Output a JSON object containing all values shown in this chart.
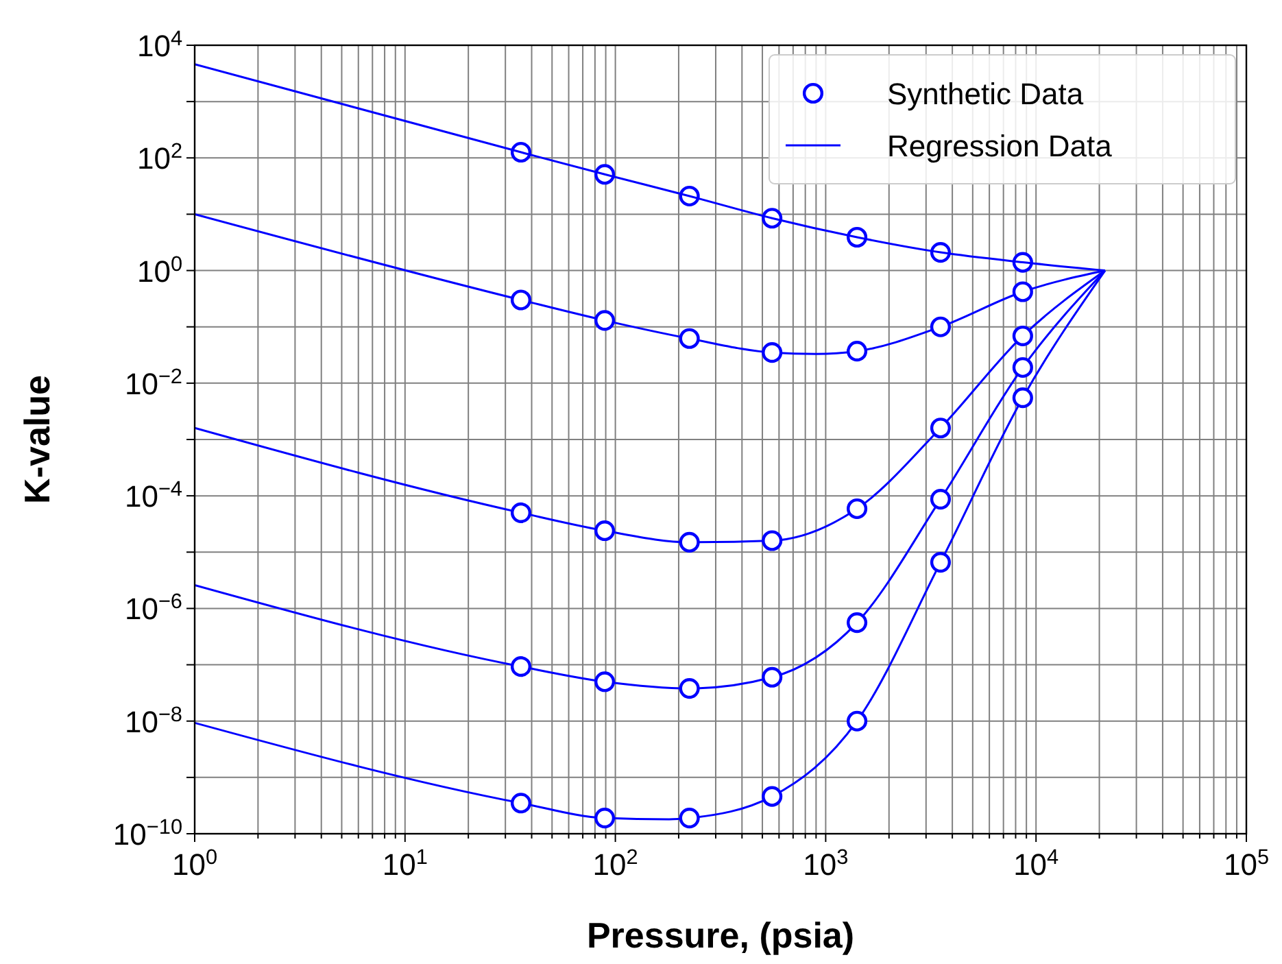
{
  "chart_data": {
    "type": "line",
    "xlabel": "Pressure, (psia)",
    "ylabel": "K-value",
    "log": "xy",
    "grid": true,
    "legend": "top right",
    "xlim": [
      1,
      100000
    ],
    "ylim": [
      1e-10,
      10000
    ],
    "xticks": [
      {
        "value": 1,
        "label": "10$^{0}$"
      },
      {
        "value": 2,
        "label": null
      },
      {
        "value": 3,
        "label": null
      },
      {
        "value": 4,
        "label": null
      },
      {
        "value": 5,
        "label": null
      },
      {
        "value": 6,
        "label": null
      },
      {
        "value": 7,
        "label": null
      },
      {
        "value": 8,
        "label": null
      },
      {
        "value": 9,
        "label": null
      },
      {
        "value": 10,
        "label": "10$^{1}$"
      },
      {
        "value": 20,
        "label": null
      },
      {
        "value": 30,
        "label": null
      },
      {
        "value": 40,
        "label": null
      },
      {
        "value": 50,
        "label": null
      },
      {
        "value": 60,
        "label": null
      },
      {
        "value": 70,
        "label": null
      },
      {
        "value": 80,
        "label": null
      },
      {
        "value": 90,
        "label": null
      },
      {
        "value": 100,
        "label": "10$^{2}$"
      },
      {
        "value": 200,
        "label": null
      },
      {
        "value": 300,
        "label": null
      },
      {
        "value": 400,
        "label": null
      },
      {
        "value": 500,
        "label": null
      },
      {
        "value": 600,
        "label": null
      },
      {
        "value": 700,
        "label": null
      },
      {
        "value": 800,
        "label": null
      },
      {
        "value": 900,
        "label": null
      },
      {
        "value": 1000,
        "label": "10$^{3}$"
      },
      {
        "value": 2000,
        "label": null
      },
      {
        "value": 3000,
        "label": null
      },
      {
        "value": 4000,
        "label": null
      },
      {
        "value": 5000,
        "label": null
      },
      {
        "value": 6000,
        "label": null
      },
      {
        "value": 7000,
        "label": null
      },
      {
        "value": 8000,
        "label": null
      },
      {
        "value": 9000,
        "label": null
      },
      {
        "value": 10000,
        "label": "10$^{4}$"
      },
      {
        "value": 20000,
        "label": null
      },
      {
        "value": 30000,
        "label": null
      },
      {
        "value": 40000,
        "label": null
      },
      {
        "value": 50000,
        "label": null
      },
      {
        "value": 60000,
        "label": null
      },
      {
        "value": 70000,
        "label": null
      },
      {
        "value": 80000,
        "label": null
      },
      {
        "value": 90000,
        "label": null
      },
      {
        "value": 100000,
        "label": "10$^{5}$"
      }
    ],
    "yticks": [
      {
        "value": 1e-10,
        "label": "10$^{−10}$"
      },
      {
        "value": 1e-09,
        "label": null
      },
      {
        "value": 1e-08,
        "label": "10$^{−8}$"
      },
      {
        "value": 1e-07,
        "label": null
      },
      {
        "value": 1e-06,
        "label": "10$^{−6}$"
      },
      {
        "value": 1e-05,
        "label": null
      },
      {
        "value": 0.0001,
        "label": "10$^{−4}$"
      },
      {
        "value": 0.001,
        "label": null
      },
      {
        "value": 0.01,
        "label": "10$^{−2}$"
      },
      {
        "value": 0.1,
        "label": null
      },
      {
        "value": 1,
        "label": "10$^{0}$"
      },
      {
        "value": 10,
        "label": null
      },
      {
        "value": 100,
        "label": "10$^{2}$"
      },
      {
        "value": 1000,
        "label": null
      },
      {
        "value": 10000,
        "label": "10$^{4}$"
      }
    ],
    "series": [
      {
        "name": "Synthetic Data",
        "type": "scatter",
        "marker": "circle",
        "color": "#0000ff",
        "x": [
          35.6,
          89,
          225,
          556,
          1409,
          3517,
          8650
        ],
        "values": [
          126,
          51,
          21,
          8.5,
          3.9,
          2.1,
          1.4
        ]
      },
      {
        "name": "Regression Data",
        "marker": "none",
        "color": "#0000ff",
        "x": [
          1,
          35.6,
          89,
          225,
          556,
          1409,
          3517,
          8650,
          21300
        ],
        "values": [
          4600,
          126,
          51,
          21,
          8.5,
          3.9,
          2.1,
          1.4,
          1
        ]
      },
      {
        "marker": "none",
        "color": "#0000ff",
        "x": [
          1,
          35.6,
          89,
          225,
          556,
          900,
          1409,
          3517,
          8650,
          21300
        ],
        "values": [
          10,
          0.3,
          0.13,
          0.062,
          0.035,
          0.033,
          0.037,
          0.1,
          0.42,
          1
        ]
      },
      {
        "marker": "none",
        "color": "#0000ff",
        "x": [
          1,
          35.6,
          89,
          225,
          556,
          1409,
          3517,
          8650,
          21300
        ],
        "values": [
          0.0016,
          5e-05,
          2.4e-05,
          1.5e-05,
          1.6e-05,
          5.9e-05,
          0.0016,
          0.069,
          1
        ]
      },
      {
        "marker": "none",
        "color": "#0000ff",
        "x": [
          1,
          35.6,
          89,
          225,
          556,
          1409,
          3517,
          8650,
          21300
        ],
        "values": [
          2.6e-06,
          9.3e-08,
          5e-08,
          3.8e-08,
          6e-08,
          5.6e-07,
          8.7e-05,
          0.019,
          1
        ]
      },
      {
        "marker": "none",
        "color": "#0000ff",
        "x": [
          1,
          35.6,
          89,
          180,
          225,
          556,
          1409,
          3517,
          8650,
          21300
        ],
        "values": [
          9.3e-09,
          3.5e-10,
          1.9e-10,
          1.8e-10,
          1.9e-10,
          4.6e-10,
          1e-08,
          6.6e-06,
          0.0055,
          1
        ]
      },
      {
        "type": "scatter",
        "marker": "circle",
        "color": "#0000ff",
        "x": [
          35.6,
          89,
          225,
          556,
          1409,
          3517,
          8650
        ],
        "values": [
          0.3,
          0.13,
          0.062,
          0.035,
          0.037,
          0.1,
          0.42
        ]
      },
      {
        "type": "scatter",
        "marker": "circle",
        "color": "#0000ff",
        "x": [
          35.6,
          89,
          225,
          556,
          1409,
          3517,
          8650
        ],
        "values": [
          5e-05,
          2.4e-05,
          1.5e-05,
          1.6e-05,
          5.9e-05,
          0.0016,
          0.069
        ]
      },
      {
        "type": "scatter",
        "marker": "circle",
        "color": "#0000ff",
        "x": [
          35.6,
          89,
          225,
          556,
          1409,
          3517,
          8650
        ],
        "values": [
          9.3e-08,
          5e-08,
          3.8e-08,
          6e-08,
          5.6e-07,
          8.7e-05,
          0.019
        ]
      },
      {
        "type": "scatter",
        "marker": "circle",
        "color": "#0000ff",
        "x": [
          35.6,
          89,
          225,
          556,
          1409,
          3517,
          8650
        ],
        "values": [
          3.5e-10,
          1.9e-10,
          1.9e-10,
          4.6e-10,
          1e-08,
          6.6e-06,
          0.0055
        ]
      }
    ]
  }
}
